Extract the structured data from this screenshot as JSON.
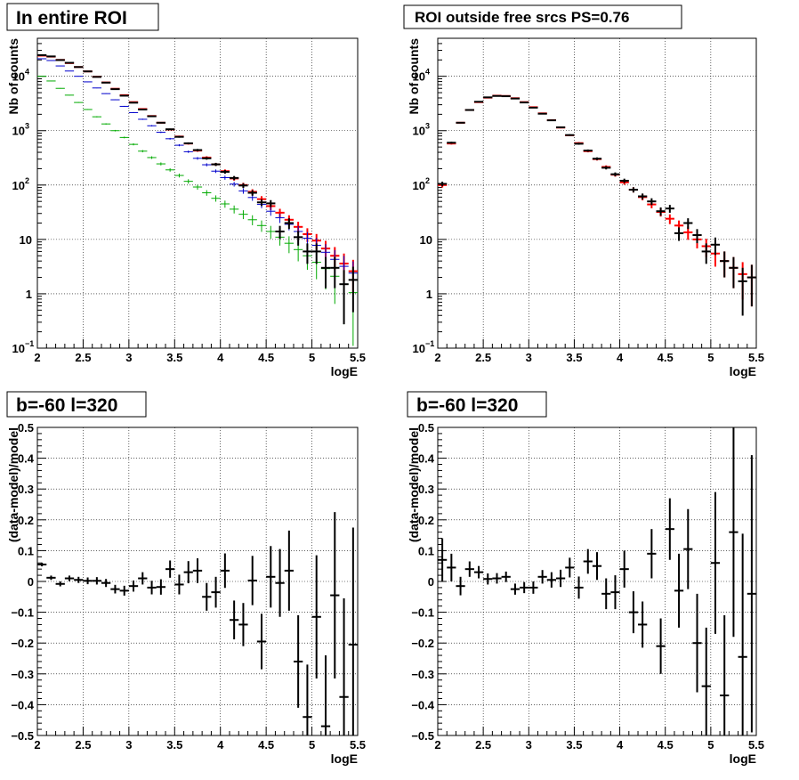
{
  "chart_data": [
    {
      "type": "scatter",
      "title": "In entire ROI",
      "xlabel": "logE",
      "ylabel": "Nb of counts",
      "xlim": [
        2,
        5.5
      ],
      "ylim": [
        0.1,
        50000
      ],
      "yscale": "log",
      "grid": true,
      "x_ticks": [
        "2",
        "2.5",
        "3",
        "3.5",
        "4",
        "4.5",
        "5",
        "5.5"
      ],
      "y_ticks": [
        {
          "value": 0.1,
          "base": "10",
          "exp": "−1"
        },
        {
          "value": 1,
          "base": "1",
          "exp": ""
        },
        {
          "value": 10,
          "base": "10",
          "exp": ""
        },
        {
          "value": 100,
          "base": "10",
          "exp": "2"
        },
        {
          "value": 1000,
          "base": "10",
          "exp": "3"
        },
        {
          "value": 10000,
          "base": "10",
          "exp": "4"
        }
      ],
      "series": [
        {
          "color": "#ff0000",
          "errors": true,
          "x": [
            2.05,
            2.15,
            2.25,
            2.35,
            2.45,
            2.55,
            2.65,
            2.75,
            2.85,
            2.95,
            3.05,
            3.15,
            3.25,
            3.35,
            3.45,
            3.55,
            3.65,
            3.75,
            3.85,
            3.95,
            4.05,
            4.15,
            4.25,
            4.35,
            4.45,
            4.55,
            4.65,
            4.75,
            4.85,
            4.95,
            5.05,
            5.15,
            5.25,
            5.35,
            5.45
          ],
          "y": [
            24000,
            23000,
            20000,
            17500,
            14800,
            12300,
            9800,
            7700,
            5900,
            4500,
            3350,
            2500,
            1860,
            1400,
            1050,
            780,
            580,
            430,
            320,
            240,
            180,
            132,
            100,
            75,
            55,
            41,
            31,
            23,
            17,
            12.5,
            9.5,
            6.8,
            5,
            3.6,
            2.6
          ]
        },
        {
          "color": "#0000cc",
          "errors": true,
          "x": [
            2.05,
            2.15,
            2.25,
            2.35,
            2.45,
            2.55,
            2.65,
            2.75,
            2.85,
            2.95,
            3.05,
            3.15,
            3.25,
            3.35,
            3.45,
            3.55,
            3.65,
            3.75,
            3.85,
            3.95,
            4.05,
            4.15,
            4.25,
            4.35,
            4.45,
            4.55,
            4.65,
            4.75,
            4.85,
            4.95,
            5.05,
            5.15,
            5.25,
            5.35,
            5.45
          ],
          "y": [
            21000,
            19500,
            15500,
            12500,
            10000,
            7900,
            6100,
            4800,
            3700,
            2800,
            2150,
            1620,
            1230,
            935,
            710,
            540,
            410,
            310,
            236,
            180,
            137,
            104,
            78,
            59,
            44,
            33,
            25,
            19,
            14,
            10.5,
            7.8,
            5.8,
            4.3,
            3.2,
            2.4
          ]
        },
        {
          "color": "#00aa00",
          "errors": true,
          "x": [
            2.05,
            2.15,
            2.25,
            2.35,
            2.45,
            2.55,
            2.65,
            2.75,
            2.85,
            2.95,
            3.05,
            3.15,
            3.25,
            3.35,
            3.45,
            3.55,
            3.65,
            3.75,
            3.85,
            3.95,
            4.05,
            4.15,
            4.25,
            4.35,
            4.45,
            4.55,
            4.65,
            4.75,
            4.85,
            4.95,
            5.05,
            5.15,
            5.25,
            5.35,
            5.45
          ],
          "y": [
            10000,
            8200,
            6000,
            4500,
            3300,
            2450,
            1800,
            1330,
            1000,
            750,
            560,
            420,
            320,
            245,
            190,
            150,
            117,
            92,
            72,
            57,
            45,
            36,
            29,
            23,
            18,
            14,
            11,
            8.5,
            6.5,
            5,
            3.8,
            2.9,
            2.1,
            1.5,
            1.05
          ]
        },
        {
          "color": "#000000",
          "errors": true,
          "x": [
            2.05,
            2.15,
            2.25,
            2.35,
            2.45,
            2.55,
            2.65,
            2.75,
            2.85,
            2.95,
            3.05,
            3.15,
            3.25,
            3.35,
            3.45,
            3.55,
            3.65,
            3.75,
            3.85,
            3.95,
            4.05,
            4.15,
            4.25,
            4.35,
            4.45,
            4.55,
            4.65,
            4.75,
            4.85,
            4.95,
            5.05,
            5.15,
            5.25,
            5.35,
            5.45
          ],
          "y": [
            24500,
            23200,
            19900,
            17700,
            14800,
            12300,
            9750,
            7650,
            5800,
            4400,
            3270,
            2450,
            1840,
            1400,
            1060,
            770,
            585,
            440,
            310,
            240,
            175,
            135,
            98,
            72,
            48,
            46,
            14,
            20,
            11,
            6,
            6,
            3,
            3,
            1.5,
            1.8
          ]
        }
      ]
    },
    {
      "type": "scatter",
      "title": "ROI outside free srcs PS=0.76",
      "xlabel": "logE",
      "ylabel": "Nb of counts",
      "xlim": [
        2,
        5.5
      ],
      "ylim": [
        0.1,
        50000
      ],
      "yscale": "log",
      "grid": true,
      "x_ticks": [
        "2",
        "2.5",
        "3",
        "3.5",
        "4",
        "4.5",
        "5",
        "5.5"
      ],
      "y_ticks": [
        {
          "value": 0.1,
          "base": "10",
          "exp": "−1"
        },
        {
          "value": 1,
          "base": "1",
          "exp": ""
        },
        {
          "value": 10,
          "base": "10",
          "exp": ""
        },
        {
          "value": 100,
          "base": "10",
          "exp": "2"
        },
        {
          "value": 1000,
          "base": "10",
          "exp": "3"
        },
        {
          "value": 10000,
          "base": "10",
          "exp": "4"
        }
      ],
      "series": [
        {
          "color": "#ff0000",
          "errors": true,
          "x": [
            2.05,
            2.15,
            2.25,
            2.35,
            2.45,
            2.55,
            2.65,
            2.75,
            2.85,
            2.95,
            3.05,
            3.15,
            3.25,
            3.35,
            3.45,
            3.55,
            3.65,
            3.75,
            3.85,
            3.95,
            4.05,
            4.15,
            4.25,
            4.35,
            4.45,
            4.55,
            4.65,
            4.75,
            4.85,
            4.95,
            5.05,
            5.15,
            5.25,
            5.35,
            5.45
          ],
          "y": [
            100,
            580,
            1400,
            2400,
            3350,
            4050,
            4400,
            4350,
            3950,
            3350,
            2700,
            2080,
            1560,
            1140,
            820,
            590,
            420,
            300,
            215,
            155,
            112,
            82,
            60,
            44,
            32,
            24,
            18,
            13.5,
            10,
            7.5,
            5.5,
            4,
            3,
            2.3,
            2
          ]
        },
        {
          "color": "#000000",
          "errors": true,
          "x": [
            2.05,
            2.15,
            2.25,
            2.35,
            2.45,
            2.55,
            2.65,
            2.75,
            2.85,
            2.95,
            3.05,
            3.15,
            3.25,
            3.35,
            3.45,
            3.55,
            3.65,
            3.75,
            3.85,
            3.95,
            4.05,
            4.15,
            4.25,
            4.35,
            4.45,
            4.55,
            4.65,
            4.75,
            4.85,
            4.95,
            5.05,
            5.15,
            5.25,
            5.35,
            5.45
          ],
          "y": [
            105,
            600,
            1400,
            2400,
            3400,
            4100,
            4350,
            4300,
            3900,
            3300,
            2650,
            2050,
            1550,
            1150,
            830,
            575,
            430,
            305,
            208,
            158,
            120,
            82,
            62,
            50,
            33,
            37,
            13,
            20,
            12,
            6,
            8,
            4,
            3,
            1.7,
            2
          ]
        }
      ]
    },
    {
      "type": "scatter",
      "title": "b=-60 l=320",
      "xlabel": "logE",
      "ylabel": "(data-model)/model",
      "xlim": [
        2,
        5.5
      ],
      "ylim": [
        -0.5,
        0.5
      ],
      "yscale": "linear",
      "grid": true,
      "x_ticks": [
        "2",
        "2.5",
        "3",
        "3.5",
        "4",
        "4.5",
        "5",
        "5.5"
      ],
      "y_ticks": [
        "−0.5",
        "−0.4",
        "−0.3",
        "−0.2",
        "−0.1",
        "0",
        "0.1",
        "0.2",
        "0.3",
        "0.4",
        "0.5"
      ],
      "series": [
        {
          "color": "#000000",
          "errors": true,
          "x": [
            2.05,
            2.15,
            2.25,
            2.35,
            2.45,
            2.55,
            2.65,
            2.75,
            2.85,
            2.95,
            3.05,
            3.15,
            3.25,
            3.35,
            3.45,
            3.55,
            3.65,
            3.75,
            3.85,
            3.95,
            4.05,
            4.15,
            4.25,
            4.35,
            4.45,
            4.55,
            4.65,
            4.75,
            4.85,
            4.95,
            5.05,
            5.15,
            5.25,
            5.35,
            5.45
          ],
          "y": [
            0.055,
            0.012,
            -0.008,
            0.01,
            0.005,
            0.002,
            0.002,
            -0.005,
            -0.025,
            -0.03,
            -0.015,
            0.01,
            -0.02,
            -0.018,
            0.04,
            -0.01,
            0.03,
            0.035,
            -0.05,
            -0.035,
            0.035,
            -0.125,
            -0.14,
            0.003,
            -0.195,
            0.015,
            -0.005,
            0.035,
            -0.26,
            -0.44,
            -0.115,
            -0.47,
            -0.045,
            -0.375,
            -0.205
          ],
          "yerr": [
            0.006,
            0.007,
            0.008,
            0.009,
            0.01,
            0.011,
            0.012,
            0.013,
            0.014,
            0.016,
            0.018,
            0.02,
            0.022,
            0.025,
            0.028,
            0.032,
            0.036,
            0.04,
            0.045,
            0.05,
            0.056,
            0.063,
            0.07,
            0.08,
            0.09,
            0.1,
            0.11,
            0.13,
            0.15,
            0.17,
            0.2,
            0.23,
            0.27,
            0.32,
            0.38
          ]
        }
      ]
    },
    {
      "type": "scatter",
      "title": "b=-60 l=320",
      "xlabel": "logE",
      "ylabel": "(data-model)/model",
      "xlim": [
        2,
        5.5
      ],
      "ylim": [
        -0.5,
        0.5
      ],
      "yscale": "linear",
      "grid": true,
      "x_ticks": [
        "2",
        "2.5",
        "3",
        "3.5",
        "4",
        "4.5",
        "5",
        "5.5"
      ],
      "y_ticks": [
        "−0.5",
        "−0.4",
        "−0.3",
        "−0.2",
        "−0.1",
        "0",
        "0.1",
        "0.2",
        "0.3",
        "0.4",
        "0.5"
      ],
      "series": [
        {
          "color": "#000000",
          "errors": true,
          "x": [
            2.05,
            2.15,
            2.25,
            2.35,
            2.45,
            2.55,
            2.65,
            2.75,
            2.85,
            2.95,
            3.05,
            3.15,
            3.25,
            3.35,
            3.45,
            3.55,
            3.65,
            3.75,
            3.85,
            3.95,
            4.05,
            4.15,
            4.25,
            4.35,
            4.45,
            4.55,
            4.65,
            4.75,
            4.85,
            4.95,
            5.05,
            5.15,
            5.25,
            5.35,
            5.45
          ],
          "y": [
            0.07,
            0.045,
            -0.015,
            0.04,
            0.03,
            0.008,
            0.01,
            0.015,
            -0.025,
            -0.02,
            -0.02,
            0.015,
            0.005,
            0.01,
            0.045,
            -0.02,
            0.065,
            0.05,
            -0.04,
            -0.035,
            0.04,
            -0.1,
            -0.14,
            0.09,
            -0.21,
            0.17,
            -0.03,
            0.105,
            -0.2,
            -0.34,
            0.06,
            -0.37,
            0.16,
            -0.245,
            -0.04
          ],
          "yerr": [
            0.07,
            0.045,
            0.03,
            0.025,
            0.02,
            0.018,
            0.017,
            0.017,
            0.018,
            0.018,
            0.02,
            0.022,
            0.025,
            0.028,
            0.032,
            0.036,
            0.04,
            0.045,
            0.05,
            0.055,
            0.06,
            0.068,
            0.075,
            0.08,
            0.09,
            0.1,
            0.12,
            0.13,
            0.16,
            0.19,
            0.23,
            0.26,
            0.34,
            0.4,
            0.45
          ]
        }
      ]
    }
  ]
}
